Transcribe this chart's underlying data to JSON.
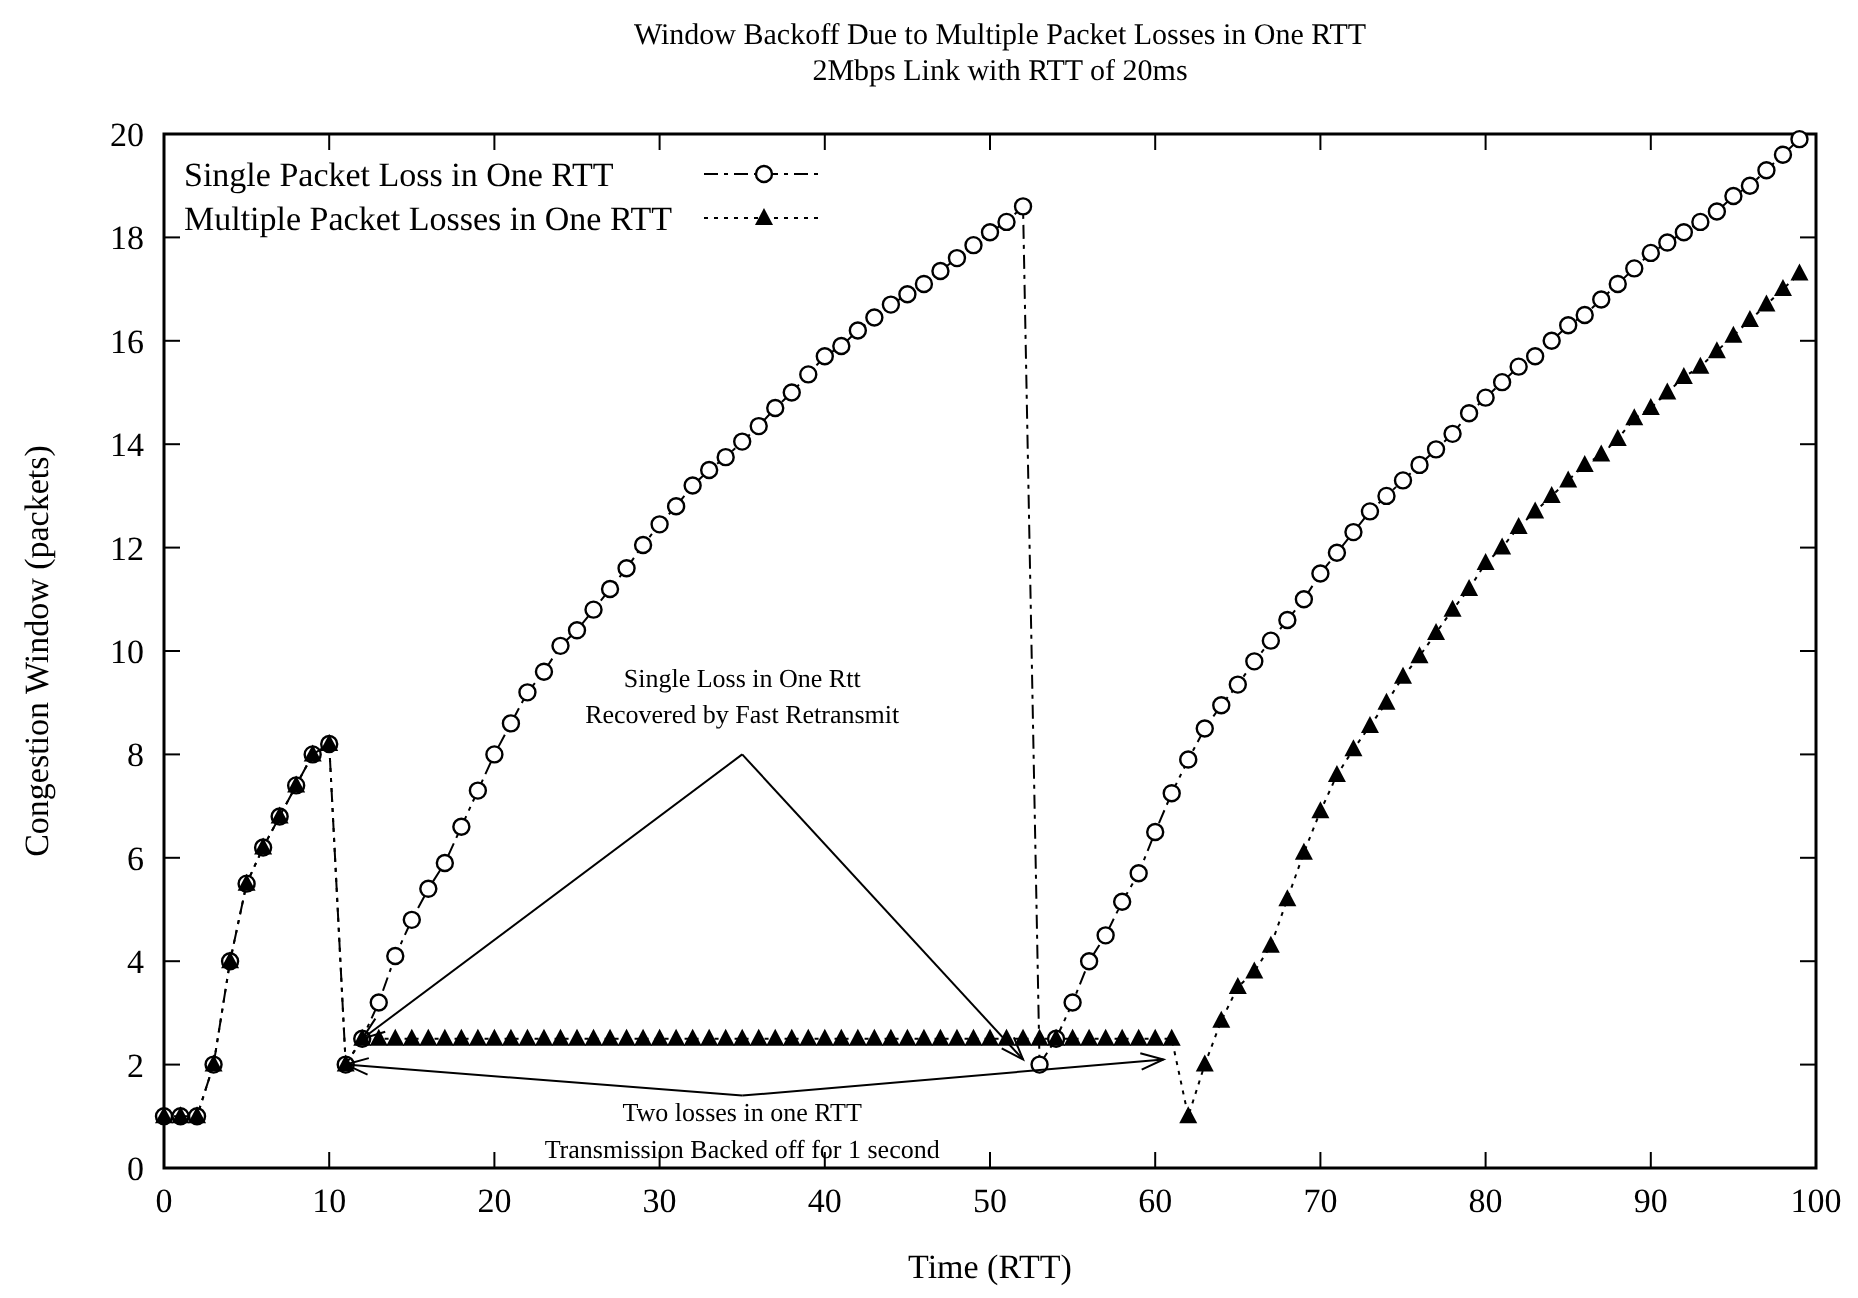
{
  "chart_data": {
    "type": "line",
    "title": "Window Backoff Due to Multiple Packet Losses in One RTT",
    "subtitle": "2Mbps Link with RTT of 20ms",
    "xlabel": "Time (RTT)",
    "ylabel": "Congestion Window (packets)",
    "x": [
      0,
      1,
      2,
      3,
      4,
      5,
      6,
      7,
      8,
      9,
      10,
      11,
      12,
      13,
      14,
      15,
      16,
      17,
      18,
      19,
      20,
      21,
      22,
      23,
      24,
      25,
      26,
      27,
      28,
      29,
      30,
      31,
      32,
      33,
      34,
      35,
      36,
      37,
      38,
      39,
      40,
      41,
      42,
      43,
      44,
      45,
      46,
      47,
      48,
      49,
      50,
      51,
      52,
      53,
      54,
      55,
      56,
      57,
      58,
      59,
      60,
      61,
      62,
      63,
      64,
      65,
      66,
      67,
      68,
      69,
      70,
      71,
      72,
      73,
      74,
      75,
      76,
      77,
      78,
      79,
      80,
      81,
      82,
      83,
      84,
      85,
      86,
      87,
      88,
      89,
      90,
      91,
      92,
      93,
      94,
      95,
      96,
      97,
      98,
      99
    ],
    "series": [
      {
        "name": "Single Packet Loss in One RTT",
        "color": "#000000",
        "marker": "circle",
        "line_style": "dashed",
        "values": [
          1,
          1,
          1,
          2,
          4,
          5.5,
          6.2,
          6.8,
          7.4,
          8,
          8.2,
          2,
          2.5,
          3.2,
          4.1,
          4.8,
          5.4,
          5.9,
          6.6,
          7.3,
          8,
          8.6,
          9.2,
          9.6,
          10.1,
          10.4,
          10.8,
          11.2,
          11.6,
          12.05,
          12.45,
          12.8,
          13.2,
          13.5,
          13.75,
          14.05,
          14.35,
          14.7,
          15,
          15.35,
          15.7,
          15.9,
          16.2,
          16.45,
          16.7,
          16.9,
          17.1,
          17.35,
          17.6,
          17.85,
          18.1,
          18.3,
          18.6,
          2,
          2.5,
          3.2,
          4,
          4.5,
          5.15,
          5.7,
          6.5,
          7.25,
          7.9,
          8.5,
          8.95,
          9.35,
          9.8,
          10.2,
          10.6,
          11,
          11.5,
          11.9,
          12.3,
          12.7,
          13,
          13.3,
          13.6,
          13.9,
          14.2,
          14.6,
          14.9,
          15.2,
          15.5,
          15.7,
          16,
          16.3,
          16.5,
          16.8,
          17.1,
          17.4,
          17.7,
          17.9,
          18.1,
          18.3,
          18.5,
          18.8,
          19,
          19.3,
          19.6,
          19.9
        ]
      },
      {
        "name": "Multiple Packet Losses in One RTT",
        "color": "#000000",
        "marker": "triangle",
        "line_style": "dotted",
        "values": [
          1,
          1,
          1,
          2,
          4,
          5.5,
          6.2,
          6.8,
          7.4,
          8,
          8.2,
          2,
          2.5,
          2.5,
          2.5,
          2.5,
          2.5,
          2.5,
          2.5,
          2.5,
          2.5,
          2.5,
          2.5,
          2.5,
          2.5,
          2.5,
          2.5,
          2.5,
          2.5,
          2.5,
          2.5,
          2.5,
          2.5,
          2.5,
          2.5,
          2.5,
          2.5,
          2.5,
          2.5,
          2.5,
          2.5,
          2.5,
          2.5,
          2.5,
          2.5,
          2.5,
          2.5,
          2.5,
          2.5,
          2.5,
          2.5,
          2.5,
          2.5,
          2.5,
          2.5,
          2.5,
          2.5,
          2.5,
          2.5,
          2.5,
          2.5,
          2.5,
          1,
          2,
          2.85,
          3.5,
          3.8,
          4.3,
          5.2,
          6.1,
          6.9,
          7.6,
          8.1,
          8.55,
          9,
          9.5,
          9.9,
          10.35,
          10.8,
          11.2,
          11.7,
          12,
          12.4,
          12.7,
          13,
          13.3,
          13.6,
          13.8,
          14.1,
          14.5,
          14.7,
          15,
          15.3,
          15.5,
          15.8,
          16.1,
          16.4,
          16.7,
          17,
          17.3
        ]
      }
    ],
    "xlim": [
      0,
      100
    ],
    "xticks": [
      0,
      10,
      20,
      30,
      40,
      50,
      60,
      70,
      80,
      90,
      100
    ],
    "ylim": [
      0,
      20
    ],
    "yticks": [
      0,
      2,
      4,
      6,
      8,
      10,
      12,
      14,
      16,
      18,
      20
    ],
    "grid": false,
    "legend": "top left",
    "annotations": [
      "Single Loss in One Rtt",
      {
        "text": "Recovered by Fast Retransmit",
        "x": 12,
        "y": 2.5
      },
      {
        "text": "Two losses in one RTT",
        "x": 11,
        "y": 2
      },
      "Transmission Backed off for 1 second"
    ]
  }
}
